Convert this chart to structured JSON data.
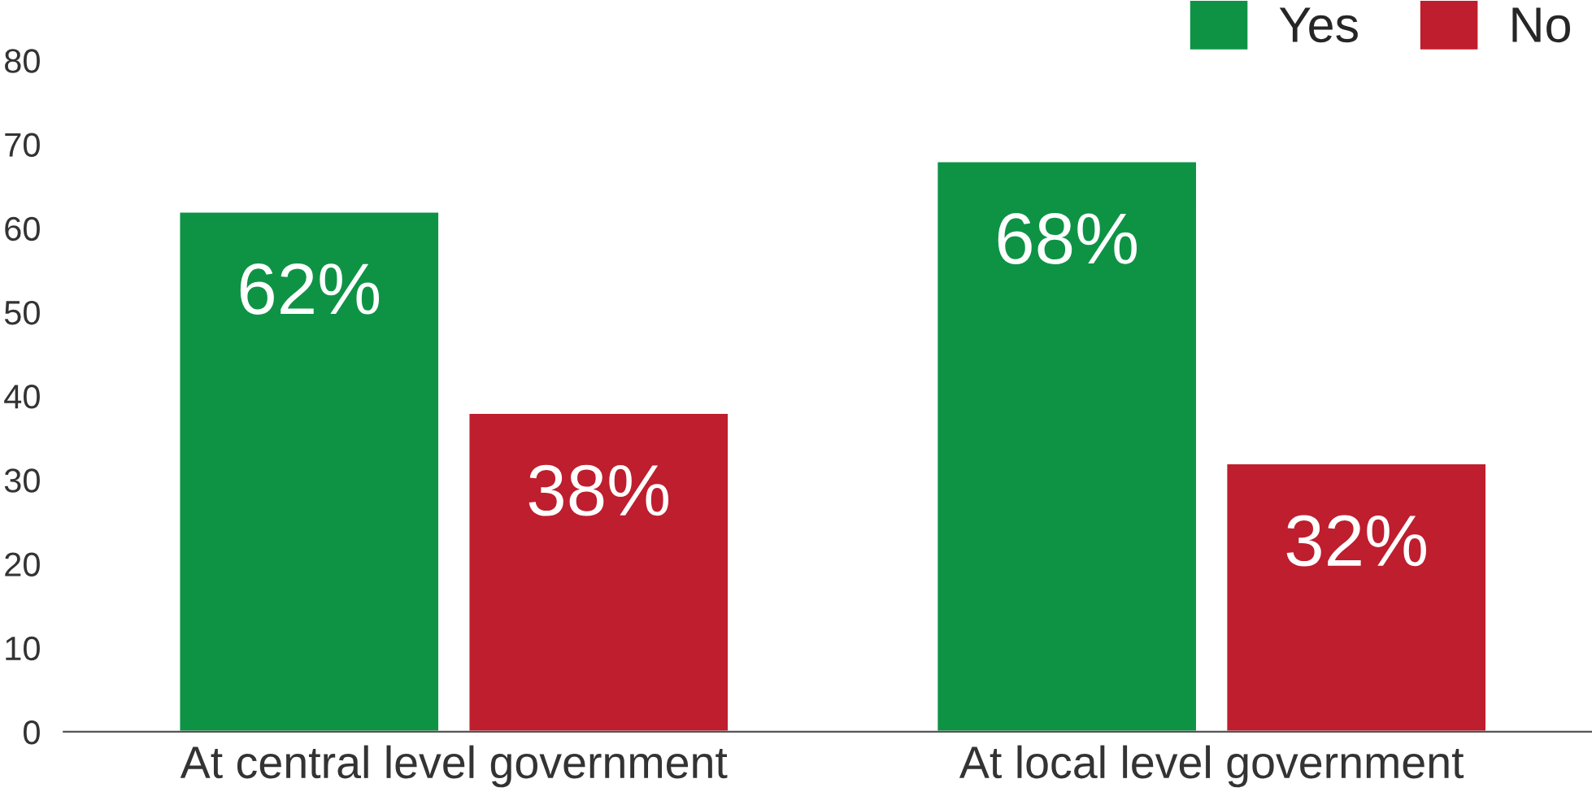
{
  "chart_data": {
    "type": "bar",
    "categories": [
      "At central level government",
      "At local level government"
    ],
    "series": [
      {
        "name": "Yes",
        "color": "#0e9345",
        "values": [
          62,
          68
        ],
        "value_labels": [
          "62%",
          "68%"
        ]
      },
      {
        "name": "No",
        "color": "#be1e2d",
        "values": [
          38,
          32
        ],
        "value_labels": [
          "38%",
          "32%"
        ]
      }
    ],
    "ylim": [
      0,
      80
    ],
    "yticks": [
      0,
      10,
      20,
      30,
      40,
      50,
      60,
      70,
      80
    ],
    "grid": false,
    "legend": "top right"
  }
}
